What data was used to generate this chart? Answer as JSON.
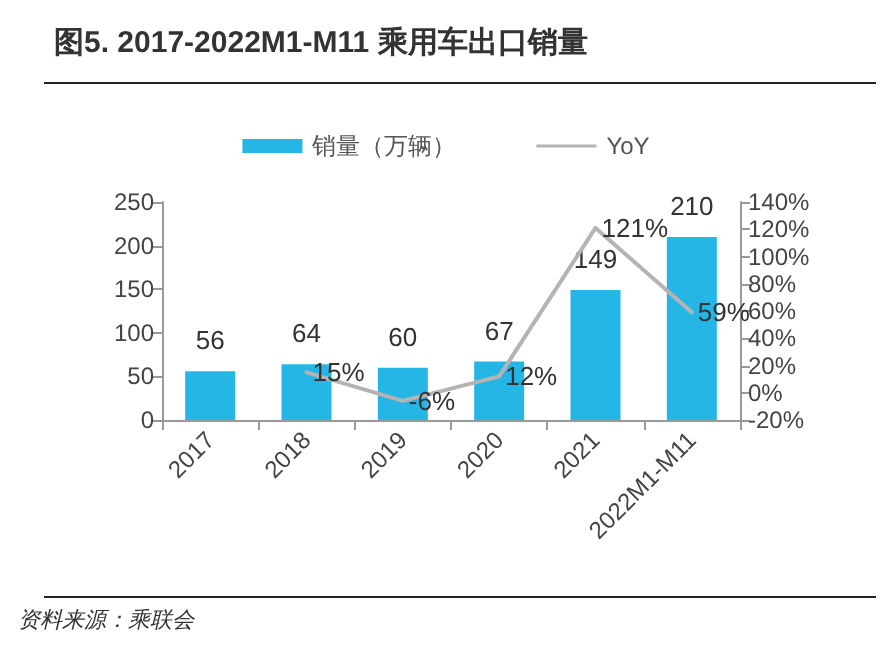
{
  "chart_data": {
    "type": "bar",
    "title": "图5. 2017-2022M1-M11 乘用车出口销量",
    "categories": [
      "2017",
      "2018",
      "2019",
      "2020",
      "2021",
      "2022M1-M11"
    ],
    "series": [
      {
        "name": "销量（万辆）",
        "color": "#25b6e6",
        "values": [
          56,
          64,
          60,
          67,
          149,
          210
        ]
      },
      {
        "name": "YoY",
        "type": "line",
        "axis": "y2",
        "color": "#b8b3b3",
        "values": [
          null,
          15,
          -6,
          12,
          121,
          59
        ],
        "value_labels": [
          null,
          "15%",
          "-6%",
          "12%",
          "121%",
          "59%"
        ]
      }
    ],
    "ylim": [
      0,
      250
    ],
    "yticks": [
      0,
      50,
      100,
      150,
      200,
      250
    ],
    "y2lim": [
      -20,
      140
    ],
    "y2ticks": [
      {
        "value": -20,
        "label": "-20%"
      },
      {
        "value": 0,
        "label": "0%"
      },
      {
        "value": 20,
        "label": "20%"
      },
      {
        "value": 40,
        "label": "40%"
      },
      {
        "value": 60,
        "label": "60%"
      },
      {
        "value": 80,
        "label": "80%"
      },
      {
        "value": 100,
        "label": "100%"
      },
      {
        "value": 120,
        "label": "120%"
      },
      {
        "value": 140,
        "label": "140%"
      }
    ],
    "data_labels": true,
    "legend": "top",
    "grid": false,
    "marker": "none",
    "line_style": "solid",
    "annotations": [
      "资料来源：乘联会"
    ]
  }
}
